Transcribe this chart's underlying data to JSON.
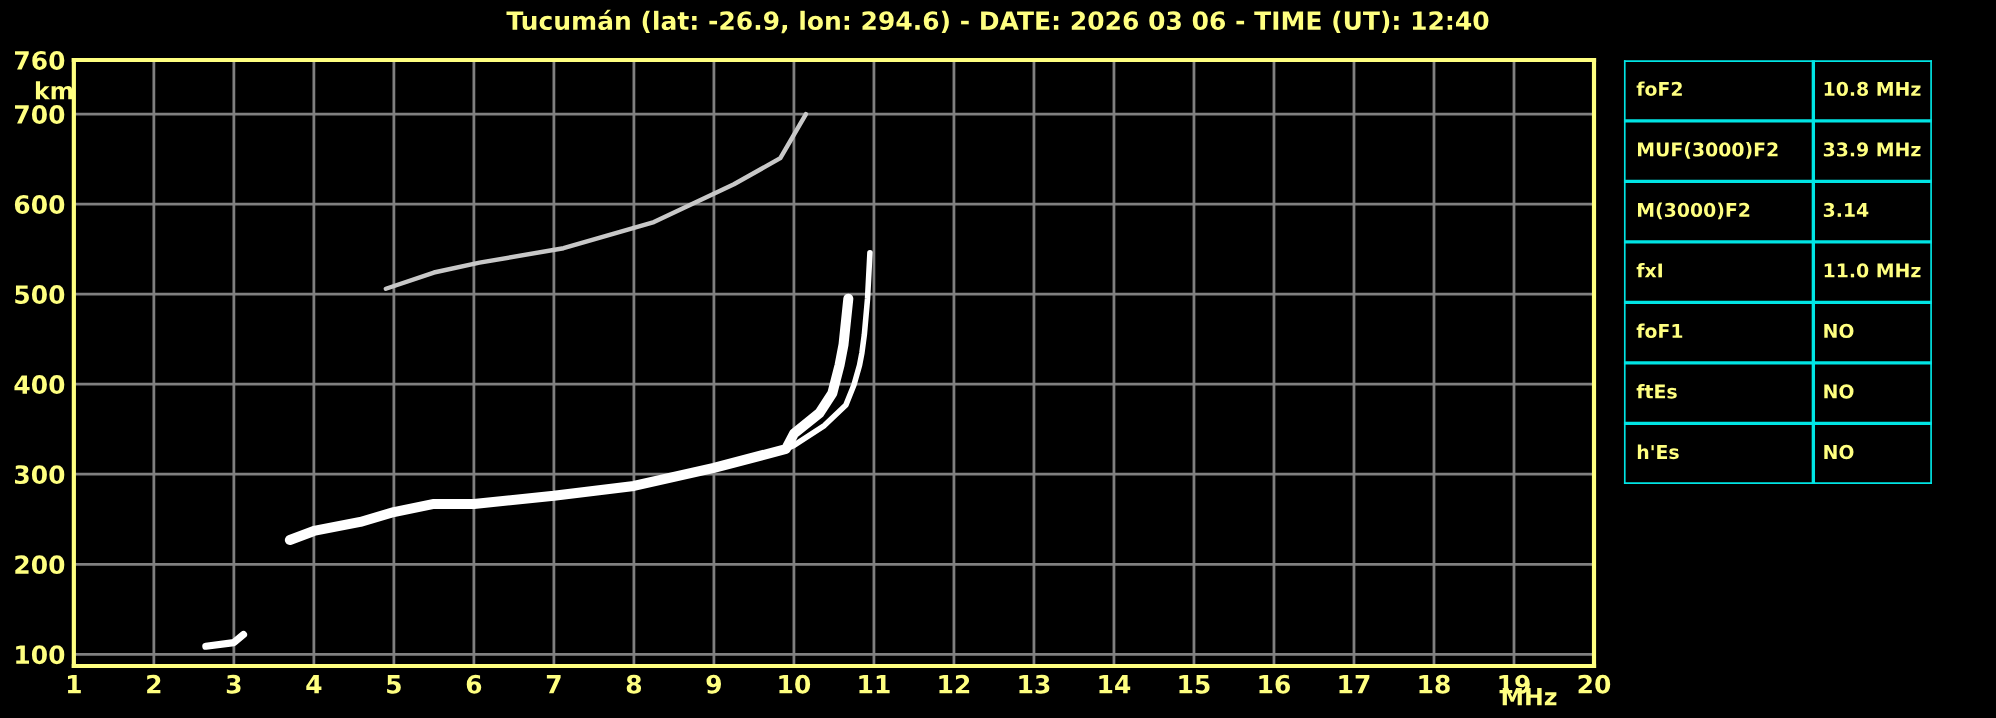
{
  "chart_data": [
    {
      "type": "line",
      "title": "Tucumán (lat: -26.9, lon: 294.6) - DATE: 2026 03 06 - TIME (UT): 12:40",
      "xlabel": "MHz",
      "ylabel": "km",
      "xlim": [
        1,
        20
      ],
      "ylim": [
        87,
        760
      ],
      "xticks": [
        1,
        2,
        3,
        4,
        5,
        6,
        7,
        8,
        9,
        10,
        11,
        12,
        13,
        14,
        15,
        16,
        17,
        18,
        19,
        20
      ],
      "yticks": [
        100,
        200,
        300,
        400,
        500,
        600,
        700,
        760
      ],
      "grid": true,
      "legend": false,
      "marker": "none",
      "line_style": "solid",
      "series": [
        {
          "color": "#ffffff",
          "x": [
            3.7,
            4.0,
            4.58,
            5.0,
            5.5,
            6.0,
            7.0,
            8.0,
            9.0,
            9.9,
            10.0,
            10.32,
            10.48,
            10.57,
            10.62,
            10.68
          ],
          "values": [
            227,
            237,
            247,
            258,
            267,
            267,
            276,
            287,
            307,
            328,
            345,
            368,
            390,
            421,
            444,
            495
          ]
        },
        {
          "color": "#ffffff",
          "x": [
            9.9,
            10.0,
            10.38,
            10.65,
            10.75,
            10.82,
            10.85,
            10.88,
            10.92,
            10.95
          ],
          "values": [
            328,
            332,
            354,
            377,
            399,
            421,
            435,
            455,
            495,
            546
          ]
        },
        {
          "color": "#c8c8c8",
          "x": [
            4.9,
            5.5,
            6.07,
            7.12,
            8.25,
            9.25,
            9.83,
            10.15
          ],
          "values": [
            506,
            524,
            535,
            551,
            580,
            622,
            651,
            700
          ]
        },
        {
          "color": "#ffffff",
          "x": [
            2.65,
            3.0,
            3.12
          ],
          "values": [
            109,
            113,
            122
          ]
        }
      ]
    },
    {
      "type": "other",
      "categories": [
        "foF2",
        "MUF(3000)F2",
        "M(3000)F2",
        "fxI",
        "foF1",
        "ftEs",
        "h'Es"
      ],
      "annotations": [
        "10.8 MHz",
        "33.9 MHz",
        "3.14",
        "11.0 MHz",
        "NO",
        "NO",
        "NO"
      ]
    }
  ]
}
